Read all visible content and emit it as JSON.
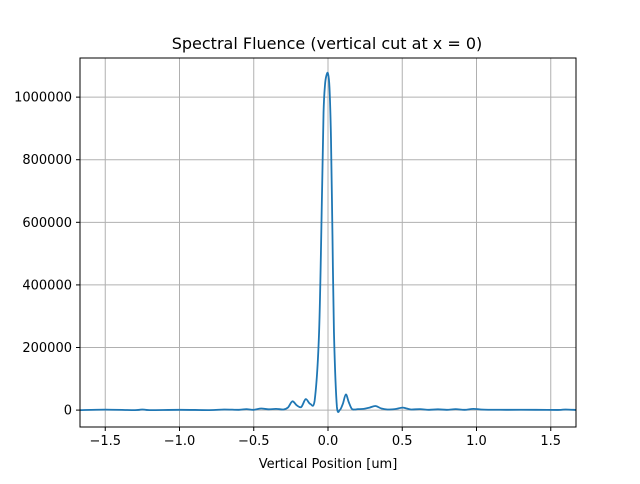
{
  "chart_data": {
    "type": "line",
    "title": "Spectral Fluence (vertical cut at x = 0)",
    "xlabel": "Vertical Position [um]",
    "ylabel": "",
    "xlim": [
      -1.67,
      1.67
    ],
    "ylim": [
      -54000,
      1125000
    ],
    "grid": true,
    "x_ticks": [
      -1.5,
      -1.0,
      -0.5,
      0.0,
      0.5,
      1.0,
      1.5
    ],
    "x_tick_labels": [
      "−1.5",
      "−1.0",
      "−0.5",
      "0.0",
      "0.5",
      "1.0",
      "1.5"
    ],
    "y_ticks": [
      0,
      200000,
      400000,
      600000,
      800000,
      1000000
    ],
    "y_tick_labels": [
      "0",
      "200000",
      "400000",
      "600000",
      "800000",
      "1000000"
    ],
    "series": [
      {
        "color": "#1f77b4",
        "x": [
          -1.67,
          -1.5,
          -1.3,
          -1.25,
          -1.2,
          -1.0,
          -0.8,
          -0.7,
          -0.6,
          -0.55,
          -0.5,
          -0.45,
          -0.4,
          -0.35,
          -0.3,
          -0.27,
          -0.24,
          -0.21,
          -0.18,
          -0.15,
          -0.12,
          -0.09,
          -0.06,
          -0.04,
          -0.03,
          -0.02,
          -0.01,
          0.0,
          0.01,
          0.02,
          0.03,
          0.04,
          0.06,
          0.08,
          0.1,
          0.12,
          0.14,
          0.16,
          0.18,
          0.2,
          0.24,
          0.28,
          0.32,
          0.36,
          0.4,
          0.45,
          0.5,
          0.53,
          0.56,
          0.62,
          0.68,
          0.74,
          0.8,
          0.86,
          0.92,
          0.98,
          1.05,
          1.2,
          1.4,
          1.55,
          1.6,
          1.67
        ],
        "y": [
          0,
          1500,
          0,
          2000,
          0,
          1000,
          0,
          2000,
          1000,
          3000,
          1000,
          5000,
          2500,
          4000,
          2000,
          8000,
          28000,
          15000,
          10000,
          35000,
          20000,
          30000,
          250000,
          700000,
          950000,
          1040000,
          1070000,
          1075000,
          1030000,
          870000,
          560000,
          250000,
          10000,
          500,
          20000,
          50000,
          25000,
          4000,
          2000,
          3000,
          4000,
          8000,
          13000,
          5000,
          2000,
          3000,
          8000,
          5000,
          2000,
          3000,
          1000,
          2500,
          1000,
          3000,
          1000,
          4000,
          1500,
          1000,
          1000,
          500,
          2000,
          500
        ]
      }
    ]
  }
}
